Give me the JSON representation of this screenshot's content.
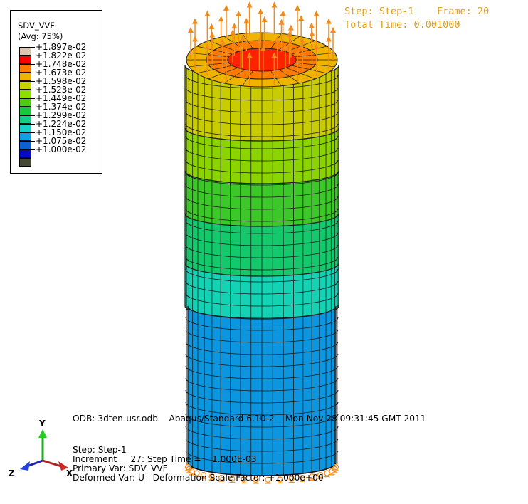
{
  "legend": {
    "variable": "SDV_VVF",
    "averaging": "(Avg: 75%)",
    "entries": [
      {
        "label": "+1.897e-02",
        "color": "#d9c7b4"
      },
      {
        "label": "+1.822e-02",
        "color": "#ff0000"
      },
      {
        "label": "+1.748e-02",
        "color": "#ff7a00"
      },
      {
        "label": "+1.673e-02",
        "color": "#f0b400"
      },
      {
        "label": "+1.598e-02",
        "color": "#c8d400"
      },
      {
        "label": "+1.523e-02",
        "color": "#8ce000"
      },
      {
        "label": "+1.449e-02",
        "color": "#4ccc1a"
      },
      {
        "label": "+1.374e-02",
        "color": "#18c83c"
      },
      {
        "label": "+1.299e-02",
        "color": "#12cc84"
      },
      {
        "label": "+1.224e-02",
        "color": "#18d0c8"
      },
      {
        "label": "+1.150e-02",
        "color": "#10a0e8"
      },
      {
        "label": "+1.075e-02",
        "color": "#0c60d0"
      },
      {
        "label": "+1.000e-02",
        "color": "#0808c8"
      },
      {
        "label": "",
        "color": "#444a30"
      }
    ]
  },
  "status": {
    "step": "Step: Step-1    Frame: 20",
    "time": "Total Time: 0.001000"
  },
  "info": {
    "odb": "ODB: 3dten-usr.odb    Abaqus/Standard 6.10-2    Mon Nov 28 09:31:45 GMT 2011",
    "step": "Step: Step-1",
    "increment": "Increment     27: Step Time =    1.000E-03",
    "primary": "Primary Var: SDV_VVF",
    "deformed": "Deformed Var: U   Deformation Scale Factor: +1.000e+00"
  },
  "triad": {
    "x": "X",
    "y": "Y",
    "z": "Z"
  },
  "model_bands": [
    {
      "color": "#c8cc00"
    },
    {
      "color": "#8cd400"
    },
    {
      "color": "#3cc828"
    },
    {
      "color": "#14c86c"
    },
    {
      "color": "#14d2b4"
    },
    {
      "color": "#0c96e0"
    }
  ],
  "load_arrow_color": "#f08c1e"
}
